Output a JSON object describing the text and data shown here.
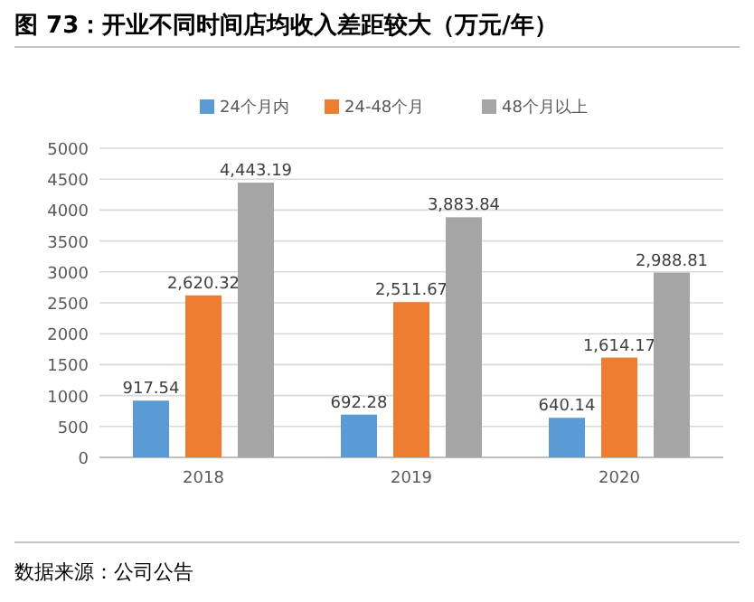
{
  "chart_data": {
    "type": "bar",
    "title": "图 73：开业不同时间店均收入差距较大（万元/年）",
    "categories": [
      "2018",
      "2019",
      "2020"
    ],
    "series": [
      {
        "name": "24个月内",
        "color": "#5b9bd5",
        "values": [
          917.54,
          692.28,
          640.14
        ],
        "value_labels": [
          "917.54",
          "692.28",
          "640.14"
        ]
      },
      {
        "name": "24-48个月",
        "color": "#ed7d31",
        "values": [
          2620.32,
          2511.67,
          1614.17
        ],
        "value_labels": [
          "2,620.32",
          "2,511.67",
          "1,614.17"
        ]
      },
      {
        "name": "48个月以上",
        "color": "#a5a5a5",
        "values": [
          4443.19,
          3883.84,
          2988.81
        ],
        "value_labels": [
          "4,443.19",
          "3,883.84",
          "2,988.81"
        ]
      }
    ],
    "ylim": [
      0,
      5000
    ],
    "yticks": [
      0,
      500,
      1000,
      1500,
      2000,
      2500,
      3000,
      3500,
      4000,
      4500,
      5000
    ],
    "grid": "y",
    "legend": "top",
    "annotations": [
      "数据来源：公司公告"
    ]
  }
}
